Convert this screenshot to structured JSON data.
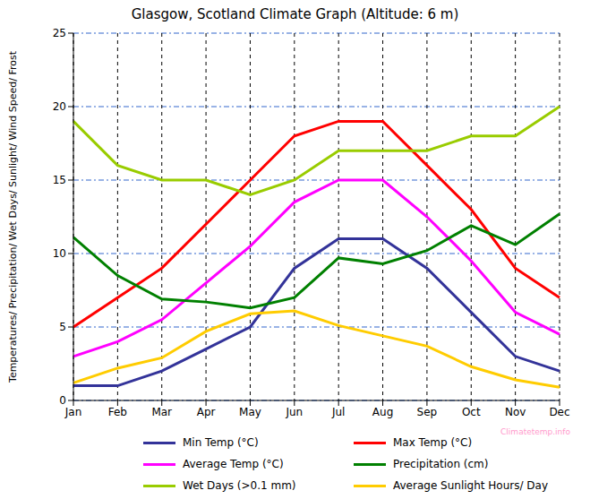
{
  "chart_data": {
    "type": "line",
    "title": "Glasgow, Scotland Climate Graph (Altitude: 6 m)",
    "y_label": "Temperatures/ Precipitation/ Wet Days/ Sunlight/ Wind Speed/ Frost",
    "annotations": [
      "Climatetemp.info"
    ],
    "categories": [
      "Jan",
      "Feb",
      "Mar",
      "Apr",
      "May",
      "Jun",
      "Jul",
      "Aug",
      "Sep",
      "Oct",
      "Nov",
      "Dec"
    ],
    "series": [
      {
        "name": "Min Temp (°C)",
        "color": "#333399",
        "values": [
          1,
          1,
          2,
          3.5,
          5,
          9,
          11,
          11,
          9,
          6,
          3,
          2
        ]
      },
      {
        "name": "Max Temp (°C)",
        "color": "#ff0000",
        "values": [
          5,
          7,
          9,
          12,
          15,
          18,
          19,
          19,
          16,
          13,
          9,
          7
        ]
      },
      {
        "name": "Average Temp (°C)",
        "color": "#ff00ff",
        "values": [
          3,
          4,
          5.5,
          8,
          10.5,
          13.5,
          15,
          15,
          12.5,
          9.5,
          6,
          4.5
        ]
      },
      {
        "name": "Precipitation (cm)",
        "color": "#008000",
        "values": [
          11.1,
          8.5,
          6.9,
          6.7,
          6.3,
          7,
          9.7,
          9.3,
          10.2,
          11.9,
          10.6,
          12.7
        ]
      },
      {
        "name": "Wet Days (>0.1 mm)",
        "color": "#99cc00",
        "values": [
          19,
          16,
          15,
          15,
          14,
          15,
          17,
          17,
          17,
          18,
          18,
          20
        ]
      },
      {
        "name": "Average Sunlight Hours/ Day",
        "color": "#ffcc00",
        "values": [
          1.2,
          2.2,
          2.9,
          4.7,
          5.9,
          6.1,
          5.1,
          4.4,
          3.7,
          2.3,
          1.4,
          0.9
        ]
      }
    ],
    "ylim": [
      0,
      25
    ],
    "yticks": [
      0,
      5,
      10,
      15,
      20,
      25
    ],
    "grid": true,
    "legend": "bottom"
  }
}
